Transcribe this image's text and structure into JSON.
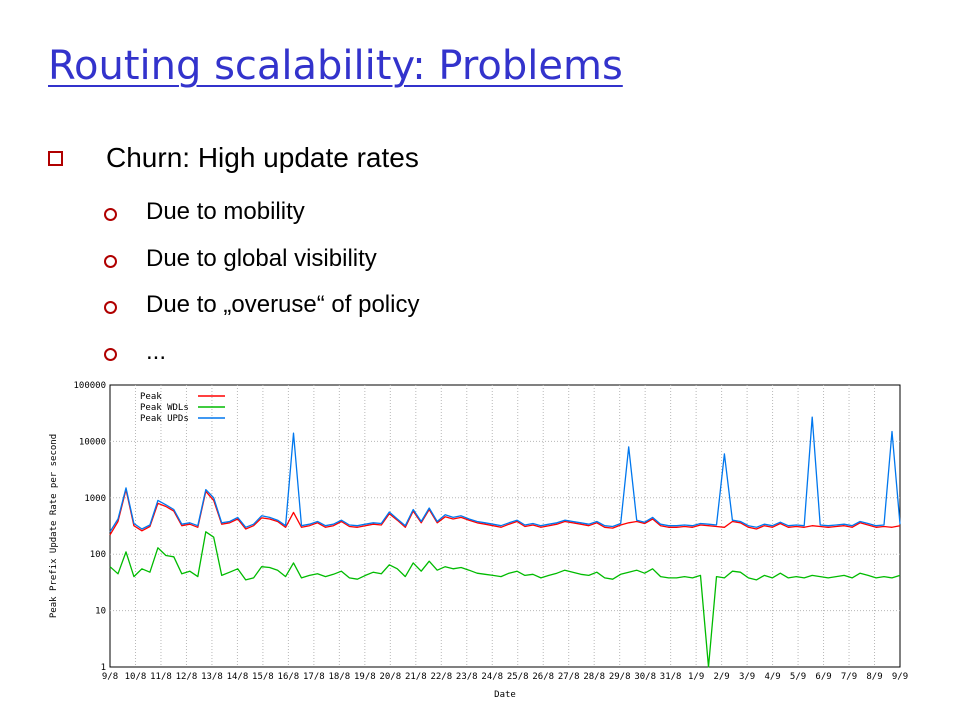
{
  "slide": {
    "title": "Routing scalability: Problems",
    "bullets": [
      "Churn: High update rates",
      "Due to mobility",
      "Due to global visibility",
      "Due to „overuse“ of policy",
      "..."
    ],
    "colors": {
      "title": "#3333cc",
      "bullet_mark": "#b00000"
    }
  },
  "chart_data": {
    "type": "line",
    "title": "",
    "xlabel": "Date",
    "ylabel": "Peak Prefix Update Rate per second",
    "yscale": "log",
    "ylim": [
      1,
      100000
    ],
    "yticks": [
      1,
      10,
      100,
      1000,
      10000,
      100000
    ],
    "ytick_labels": [
      "1",
      "10",
      "100",
      "1000",
      "10000",
      "100000"
    ],
    "grid": true,
    "legend_position": "top-left",
    "x_tick_labels": [
      "9/8",
      "10/8",
      "11/8",
      "12/8",
      "13/8",
      "14/8",
      "15/8",
      "16/8",
      "17/8",
      "18/8",
      "19/8",
      "20/8",
      "21/8",
      "22/8",
      "23/8",
      "24/8",
      "25/8",
      "26/8",
      "27/8",
      "28/8",
      "29/8",
      "30/8",
      "31/8",
      "1/9",
      "2/9",
      "3/9",
      "4/9",
      "5/9",
      "6/9",
      "7/9",
      "8/9",
      "9/9"
    ],
    "series": [
      {
        "name": "Peak",
        "color": "#ff0000",
        "values": [
          220,
          380,
          1400,
          320,
          260,
          310,
          800,
          700,
          580,
          320,
          340,
          300,
          1300,
          900,
          340,
          360,
          420,
          280,
          320,
          440,
          420,
          380,
          300,
          550,
          300,
          320,
          360,
          300,
          320,
          380,
          310,
          300,
          320,
          340,
          330,
          520,
          400,
          300,
          580,
          360,
          620,
          360,
          460,
          420,
          450,
          400,
          360,
          340,
          320,
          300,
          340,
          380,
          310,
          330,
          300,
          320,
          340,
          380,
          360,
          340,
          320,
          360,
          300,
          290,
          330,
          360,
          380,
          350,
          420,
          320,
          300,
          300,
          310,
          300,
          330,
          320,
          310,
          300,
          380,
          360,
          300,
          280,
          320,
          300,
          350,
          300,
          310,
          300,
          320,
          310,
          300,
          310,
          320,
          300,
          360,
          330,
          300,
          310,
          300,
          320
        ]
      },
      {
        "name": "Peak WDLs",
        "color": "#00bb00",
        "values": [
          60,
          45,
          110,
          40,
          55,
          48,
          130,
          95,
          90,
          45,
          50,
          40,
          250,
          200,
          42,
          48,
          55,
          35,
          38,
          60,
          58,
          52,
          40,
          70,
          38,
          42,
          45,
          40,
          44,
          50,
          38,
          36,
          42,
          48,
          45,
          65,
          55,
          40,
          70,
          50,
          75,
          52,
          60,
          55,
          58,
          52,
          46,
          44,
          42,
          40,
          46,
          50,
          42,
          44,
          38,
          42,
          46,
          52,
          48,
          44,
          42,
          48,
          38,
          36,
          44,
          48,
          52,
          46,
          55,
          40,
          38,
          38,
          40,
          38,
          42,
          1,
          40,
          38,
          50,
          48,
          38,
          35,
          42,
          38,
          46,
          38,
          40,
          38,
          42,
          40,
          38,
          40,
          42,
          38,
          46,
          42,
          38,
          40,
          38,
          42
        ]
      },
      {
        "name": "Peak UPDs",
        "color": "#0077ee",
        "values": [
          250,
          420,
          1500,
          350,
          280,
          330,
          900,
          750,
          620,
          340,
          360,
          320,
          1400,
          1000,
          360,
          380,
          450,
          300,
          340,
          480,
          450,
          400,
          320,
          14000,
          320,
          340,
          380,
          320,
          340,
          400,
          330,
          320,
          340,
          360,
          350,
          560,
          420,
          320,
          620,
          380,
          660,
          380,
          500,
          450,
          480,
          420,
          380,
          360,
          340,
          320,
          360,
          400,
          330,
          350,
          320,
          340,
          360,
          400,
          380,
          360,
          340,
          380,
          320,
          310,
          350,
          8000,
          400,
          370,
          450,
          340,
          320,
          320,
          330,
          320,
          350,
          340,
          330,
          6000,
          400,
          380,
          320,
          300,
          340,
          320,
          370,
          320,
          330,
          320,
          27000,
          330,
          320,
          330,
          340,
          320,
          380,
          350,
          320,
          330,
          15000,
          340
        ]
      }
    ]
  }
}
